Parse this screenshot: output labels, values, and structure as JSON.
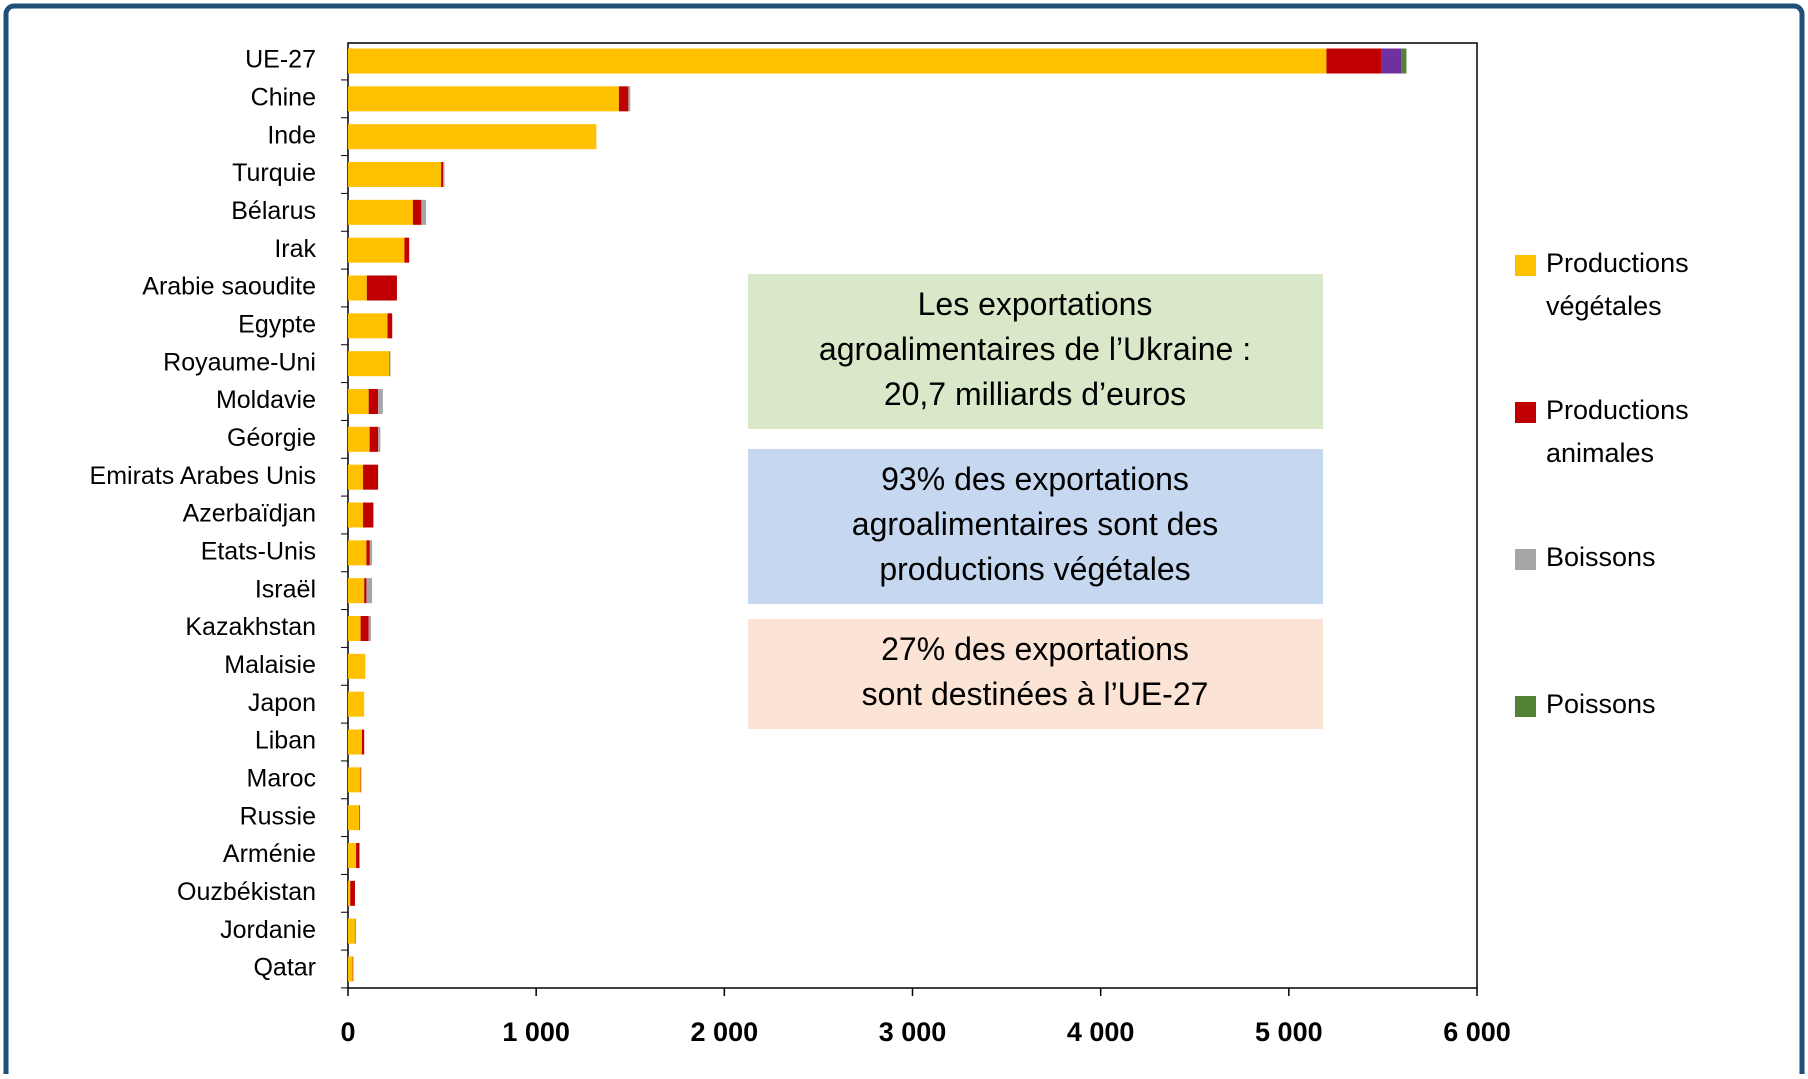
{
  "chart_data": {
    "type": "stacked-barh",
    "categories": [
      "UE-27",
      "Chine",
      "Inde",
      "Turquie",
      "Bélarus",
      "Irak",
      "Arabie saoudite",
      "Egypte",
      "Royaume-Uni",
      "Moldavie",
      "Géorgie",
      "Emirats Arabes Unis",
      "Azerbaïdjan",
      "Etats-Unis",
      "Israël",
      "Kazakhstan",
      "Malaisie",
      "Japon",
      "Liban",
      "Maroc",
      "Russie",
      "Arménie",
      "Ouzbékistan",
      "Jordanie",
      "Qatar"
    ],
    "series": [
      {
        "name": [
          "Productions",
          "végétales"
        ],
        "color": "#ffc000",
        "values": [
          5200,
          1440,
          1320,
          495,
          345,
          300,
          100,
          210,
          220,
          110,
          115,
          80,
          80,
          98,
          86,
          67,
          92,
          86,
          74,
          67,
          61,
          43,
          12,
          37,
          25
        ]
      },
      {
        "name": [
          "Productions",
          "animales"
        ],
        "color": "#c00000",
        "values": [
          290,
          50,
          0,
          10,
          45,
          25,
          160,
          25,
          0,
          50,
          45,
          80,
          55,
          18,
          12,
          43,
          0,
          0,
          12,
          3,
          3,
          18,
          25,
          3,
          3
        ]
      },
      {
        "name": [
          "Boissons"
        ],
        "color": "#a6a6a6",
        "values": [
          0,
          10,
          0,
          8,
          25,
          0,
          0,
          0,
          0,
          25,
          12,
          0,
          0,
          12,
          30,
          12,
          0,
          0,
          0,
          0,
          0,
          0,
          0,
          0,
          0
        ]
      },
      {
        "color": "#7030a0",
        "values": [
          110,
          0,
          0,
          0,
          0,
          0,
          0,
          0,
          0,
          0,
          0,
          0,
          0,
          0,
          0,
          0,
          0,
          0,
          0,
          0,
          0,
          0,
          0,
          0,
          0
        ]
      },
      {
        "name": [
          "Poissons"
        ],
        "color": "#548235",
        "values": [
          25,
          0,
          0,
          0,
          0,
          0,
          0,
          0,
          5,
          0,
          0,
          0,
          0,
          0,
          0,
          0,
          0,
          0,
          0,
          0,
          0,
          0,
          0,
          0,
          0
        ]
      }
    ],
    "xlim": [
      0,
      6000
    ],
    "xticks": [
      0,
      {
        "value": 1000,
        "label": "1 000"
      },
      {
        "value": 2000,
        "label": "2 000"
      },
      {
        "value": 3000,
        "label": "3 000"
      },
      {
        "value": 4000,
        "label": "4 000"
      },
      {
        "value": 5000,
        "label": "5 000"
      },
      {
        "value": 6000,
        "label": "6 000"
      }
    ],
    "legend": "right",
    "annotations": [
      {
        "lines": [
          "Les exportations",
          "agroalimentaires de l’Ukraine :",
          "20,7 milliards d’euros"
        ],
        "color": "#d9e8c9"
      },
      {
        "lines": [
          "93% des exportations",
          "agroalimentaires sont des",
          "productions végétales"
        ],
        "color": "#c5d8f0"
      },
      {
        "lines": [
          "27% des exportations",
          "sont destinées à l’UE-27"
        ],
        "color": "#fbe4d5"
      }
    ]
  }
}
